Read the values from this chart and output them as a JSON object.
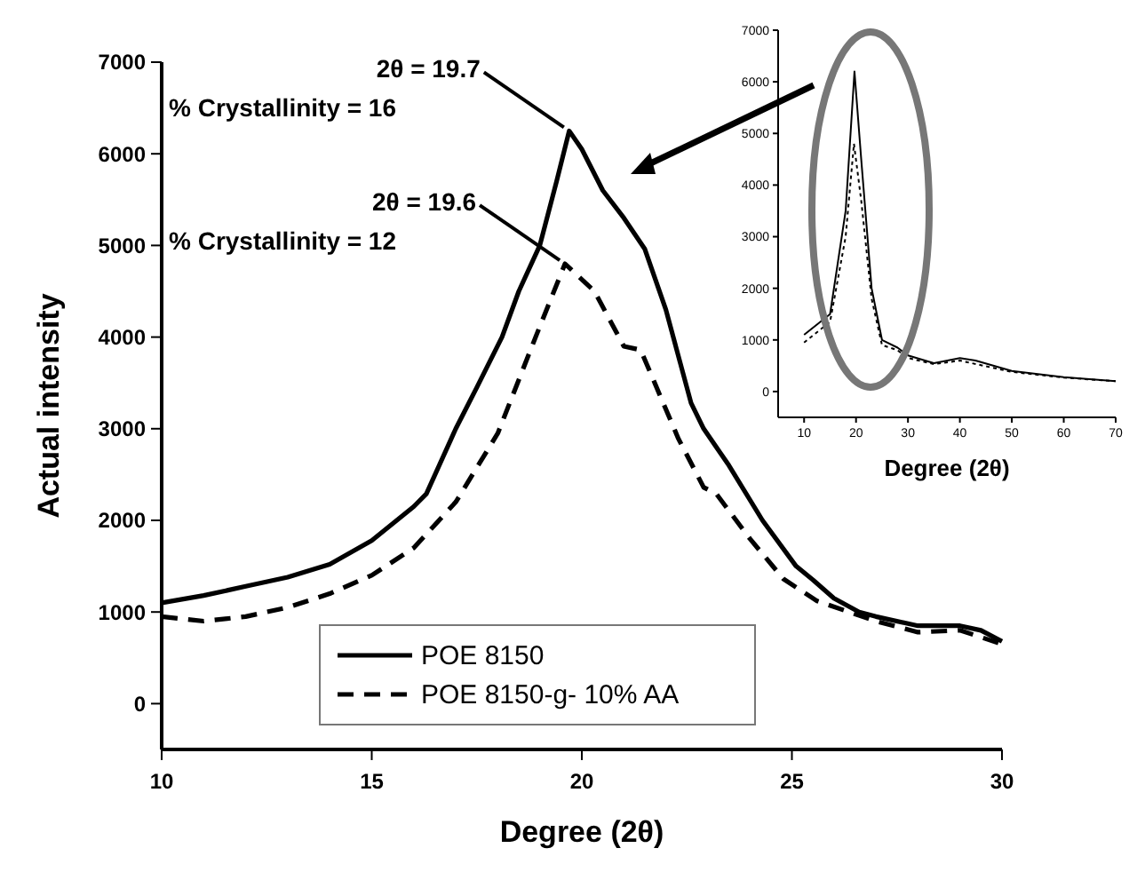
{
  "chart_data": [
    {
      "type": "line",
      "xlabel": "Degree (2θ)",
      "ylabel": "Actual intensity",
      "xlim": [
        10,
        30
      ],
      "ylim": [
        -500,
        7000
      ],
      "xticks": [
        10,
        15,
        20,
        25,
        30
      ],
      "yticks": [
        0,
        1000,
        2000,
        3000,
        4000,
        5000,
        6000,
        7000
      ],
      "legend": "bottom",
      "annotations": [
        {
          "text": "2θ = 19.7",
          "x": 19.7,
          "y": 6250
        },
        "% Crystallinity = 16",
        {
          "text": "2θ = 19.6",
          "x": 19.6,
          "y": 4800
        },
        "% Crystallinity = 12"
      ],
      "series": [
        {
          "name": "POE 8150",
          "color": "#000000",
          "line_style": "solid",
          "x": [
            10,
            11,
            12,
            13,
            14,
            15,
            16,
            16.3,
            17,
            17.5,
            18.1,
            18.5,
            19,
            19.4,
            19.7,
            20,
            20.5,
            21,
            21.5,
            22,
            22.6,
            22.9,
            23.5,
            24.3,
            25.1,
            25.5,
            26,
            26.6,
            27,
            28,
            29,
            29.5,
            30
          ],
          "values": [
            1100,
            1180,
            1280,
            1380,
            1520,
            1780,
            2150,
            2290,
            3000,
            3450,
            4000,
            4500,
            5000,
            5700,
            6250,
            6050,
            5600,
            5300,
            4960,
            4300,
            3280,
            3000,
            2600,
            2000,
            1500,
            1350,
            1150,
            1000,
            950,
            850,
            850,
            800,
            680
          ]
        },
        {
          "name": "POE 8150-g- 10% AA",
          "color": "#000000",
          "line_style": "dashed",
          "x": [
            10,
            11,
            12,
            13,
            14,
            15,
            16,
            17,
            18,
            18.9,
            19.6,
            20.3,
            21,
            21.4,
            22.3,
            22.9,
            23.2,
            24,
            24.8,
            25.6,
            27,
            28,
            29,
            30
          ],
          "values": [
            950,
            900,
            950,
            1050,
            1200,
            1400,
            1700,
            2200,
            2950,
            4000,
            4800,
            4500,
            3900,
            3860,
            2890,
            2360,
            2290,
            1800,
            1360,
            1120,
            900,
            780,
            800,
            650
          ]
        }
      ]
    },
    {
      "type": "line",
      "xlabel": "Degree (2θ)",
      "xlim": [
        5,
        70
      ],
      "ylim": [
        -500,
        7000
      ],
      "xticks": [
        10,
        20,
        30,
        40,
        50,
        60,
        70
      ],
      "yticks": [
        0,
        1000,
        2000,
        3000,
        4000,
        5000,
        6000,
        7000
      ],
      "series": [
        {
          "color": "#000000",
          "line_style": "solid",
          "x": [
            10,
            15,
            18,
            19.7,
            21,
            23,
            25,
            28,
            30,
            35,
            40,
            43,
            50,
            60,
            70
          ],
          "values": [
            1100,
            1500,
            3500,
            6200,
            4500,
            2000,
            1000,
            850,
            700,
            550,
            650,
            600,
            400,
            280,
            200
          ]
        },
        {
          "color": "#000000",
          "line_style": "dashed",
          "x": [
            10,
            15,
            18,
            19.6,
            21,
            23,
            25,
            28,
            30,
            35,
            40,
            50,
            60,
            70
          ],
          "values": [
            950,
            1350,
            3000,
            4800,
            3700,
            1800,
            900,
            800,
            650,
            530,
            600,
            380,
            270,
            200
          ]
        }
      ]
    }
  ]
}
